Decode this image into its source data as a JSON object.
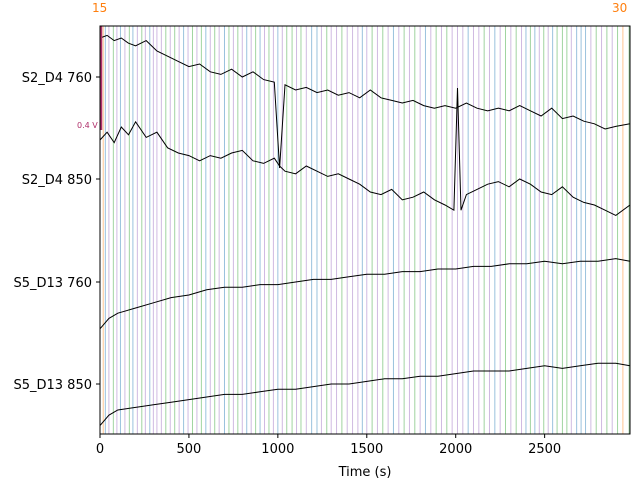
{
  "chart_data": {
    "type": "line",
    "title": "",
    "xlabel": "Time (s)",
    "ylabel": "",
    "xlim": [
      0,
      2980
    ],
    "xticks": [
      0,
      500,
      1000,
      1500,
      2000,
      2500
    ],
    "grid": false,
    "channels": [
      {
        "name": "S2_D4 760"
      },
      {
        "name": "S2_D4 850"
      },
      {
        "name": "S5_D13 760"
      },
      {
        "name": "S5_D13 850"
      }
    ],
    "scale_bar": {
      "label": "0.4 V",
      "color": "#b0306b"
    },
    "annotation_colors": [
      "#1f77b4",
      "#2ca02c",
      "#9467bd",
      "#ff7f0e"
    ],
    "annotation_top_text": "15",
    "annotation_end_text": "30",
    "series": [
      {
        "name": "S2_D4 760",
        "x": [
          0,
          40,
          80,
          120,
          160,
          200,
          260,
          320,
          380,
          440,
          500,
          560,
          620,
          680,
          740,
          800,
          860,
          920,
          980,
          1010,
          1040,
          1100,
          1160,
          1220,
          1280,
          1340,
          1400,
          1460,
          1520,
          1580,
          1640,
          1700,
          1760,
          1820,
          1880,
          1940,
          2000,
          2060,
          2120,
          2180,
          2240,
          2300,
          2360,
          2420,
          2480,
          2540,
          2600,
          2660,
          2720,
          2780,
          2840,
          2900,
          2980
        ],
        "y": [
          0.15,
          0.16,
          0.14,
          0.15,
          0.13,
          0.12,
          0.14,
          0.1,
          0.08,
          0.06,
          0.04,
          0.05,
          0.02,
          0.01,
          0.03,
          0.0,
          0.02,
          -0.01,
          -0.02,
          -0.35,
          -0.03,
          -0.05,
          -0.04,
          -0.06,
          -0.05,
          -0.07,
          -0.06,
          -0.08,
          -0.05,
          -0.08,
          -0.09,
          -0.1,
          -0.09,
          -0.11,
          -0.12,
          -0.11,
          -0.12,
          -0.1,
          -0.12,
          -0.13,
          -0.12,
          -0.13,
          -0.11,
          -0.13,
          -0.15,
          -0.12,
          -0.16,
          -0.15,
          -0.17,
          -0.18,
          -0.2,
          -0.19,
          -0.18
        ]
      },
      {
        "name": "S2_D4 850",
        "x": [
          0,
          40,
          80,
          120,
          160,
          200,
          260,
          320,
          380,
          440,
          500,
          560,
          620,
          680,
          740,
          800,
          860,
          920,
          980,
          1010,
          1040,
          1100,
          1160,
          1220,
          1280,
          1340,
          1400,
          1460,
          1520,
          1580,
          1640,
          1700,
          1760,
          1820,
          1880,
          1940,
          1990,
          2010,
          2030,
          2060,
          2120,
          2180,
          2240,
          2300,
          2360,
          2420,
          2480,
          2540,
          2600,
          2660,
          2720,
          2780,
          2840,
          2900,
          2980
        ],
        "y": [
          0.15,
          0.18,
          0.14,
          0.2,
          0.17,
          0.22,
          0.16,
          0.18,
          0.12,
          0.1,
          0.09,
          0.07,
          0.09,
          0.08,
          0.1,
          0.11,
          0.07,
          0.06,
          0.08,
          0.05,
          0.03,
          0.02,
          0.05,
          0.03,
          0.01,
          0.02,
          0.0,
          -0.02,
          -0.05,
          -0.06,
          -0.04,
          -0.08,
          -0.07,
          -0.05,
          -0.08,
          -0.1,
          -0.12,
          0.35,
          -0.12,
          -0.06,
          -0.04,
          -0.02,
          -0.01,
          -0.03,
          0.0,
          -0.02,
          -0.05,
          -0.06,
          -0.03,
          -0.07,
          -0.09,
          -0.1,
          -0.12,
          -0.14,
          -0.1
        ]
      },
      {
        "name": "S5_D13 760",
        "x": [
          0,
          50,
          100,
          200,
          300,
          400,
          500,
          600,
          700,
          800,
          900,
          1000,
          1100,
          1200,
          1300,
          1400,
          1500,
          1600,
          1700,
          1800,
          1900,
          2000,
          2100,
          2200,
          2300,
          2400,
          2500,
          2600,
          2700,
          2800,
          2900,
          2980
        ],
        "y": [
          -0.18,
          -0.14,
          -0.12,
          -0.1,
          -0.08,
          -0.06,
          -0.05,
          -0.03,
          -0.02,
          -0.02,
          -0.01,
          -0.01,
          0.0,
          0.01,
          0.01,
          0.02,
          0.03,
          0.03,
          0.04,
          0.04,
          0.05,
          0.05,
          0.06,
          0.06,
          0.07,
          0.07,
          0.08,
          0.07,
          0.08,
          0.08,
          0.09,
          0.08
        ]
      },
      {
        "name": "S5_D13 850",
        "x": [
          0,
          50,
          100,
          200,
          300,
          400,
          500,
          600,
          700,
          800,
          900,
          1000,
          1100,
          1200,
          1300,
          1400,
          1500,
          1600,
          1700,
          1800,
          1900,
          2000,
          2100,
          2200,
          2300,
          2400,
          2500,
          2600,
          2700,
          2800,
          2900,
          2980
        ],
        "y": [
          -0.16,
          -0.12,
          -0.1,
          -0.09,
          -0.08,
          -0.07,
          -0.06,
          -0.05,
          -0.04,
          -0.04,
          -0.03,
          -0.02,
          -0.02,
          -0.01,
          0.0,
          0.0,
          0.01,
          0.02,
          0.02,
          0.03,
          0.03,
          0.04,
          0.05,
          0.05,
          0.05,
          0.06,
          0.07,
          0.06,
          0.07,
          0.08,
          0.08,
          0.07
        ]
      }
    ],
    "annotations": [
      {
        "t": 18,
        "c": 3
      },
      {
        "t": 30,
        "c": 0
      },
      {
        "t": 50,
        "c": 2
      },
      {
        "t": 75,
        "c": 1
      },
      {
        "t": 95,
        "c": 2
      },
      {
        "t": 115,
        "c": 0
      },
      {
        "t": 140,
        "c": 2
      },
      {
        "t": 165,
        "c": 1
      },
      {
        "t": 185,
        "c": 0
      },
      {
        "t": 210,
        "c": 2
      },
      {
        "t": 235,
        "c": 1
      },
      {
        "t": 255,
        "c": 2
      },
      {
        "t": 280,
        "c": 0
      },
      {
        "t": 300,
        "c": 2
      },
      {
        "t": 320,
        "c": 2
      },
      {
        "t": 345,
        "c": 2
      },
      {
        "t": 370,
        "c": 1
      },
      {
        "t": 395,
        "c": 2
      },
      {
        "t": 420,
        "c": 1
      },
      {
        "t": 445,
        "c": 2
      },
      {
        "t": 470,
        "c": 0
      },
      {
        "t": 495,
        "c": 2
      },
      {
        "t": 520,
        "c": 1
      },
      {
        "t": 545,
        "c": 2
      },
      {
        "t": 570,
        "c": 1
      },
      {
        "t": 595,
        "c": 0
      },
      {
        "t": 620,
        "c": 2
      },
      {
        "t": 645,
        "c": 1
      },
      {
        "t": 670,
        "c": 2
      },
      {
        "t": 700,
        "c": 0
      },
      {
        "t": 725,
        "c": 1
      },
      {
        "t": 750,
        "c": 2
      },
      {
        "t": 775,
        "c": 1
      },
      {
        "t": 800,
        "c": 2
      },
      {
        "t": 825,
        "c": 0
      },
      {
        "t": 850,
        "c": 2
      },
      {
        "t": 875,
        "c": 1
      },
      {
        "t": 900,
        "c": 0
      },
      {
        "t": 925,
        "c": 2
      },
      {
        "t": 950,
        "c": 1
      },
      {
        "t": 975,
        "c": 2
      },
      {
        "t": 1000,
        "c": 0
      },
      {
        "t": 1025,
        "c": 2
      },
      {
        "t": 1050,
        "c": 1
      },
      {
        "t": 1080,
        "c": 1
      },
      {
        "t": 1105,
        "c": 2
      },
      {
        "t": 1130,
        "c": 1
      },
      {
        "t": 1160,
        "c": 2
      },
      {
        "t": 1190,
        "c": 0
      },
      {
        "t": 1220,
        "c": 0
      },
      {
        "t": 1245,
        "c": 2
      },
      {
        "t": 1275,
        "c": 1
      },
      {
        "t": 1300,
        "c": 2
      },
      {
        "t": 1330,
        "c": 2
      },
      {
        "t": 1360,
        "c": 1
      },
      {
        "t": 1390,
        "c": 2
      },
      {
        "t": 1420,
        "c": 2
      },
      {
        "t": 1450,
        "c": 2
      },
      {
        "t": 1475,
        "c": 0
      },
      {
        "t": 1500,
        "c": 2
      },
      {
        "t": 1530,
        "c": 1
      },
      {
        "t": 1560,
        "c": 2
      },
      {
        "t": 1590,
        "c": 1
      },
      {
        "t": 1620,
        "c": 2
      },
      {
        "t": 1650,
        "c": 0
      },
      {
        "t": 1680,
        "c": 2
      },
      {
        "t": 1710,
        "c": 1
      },
      {
        "t": 1740,
        "c": 2
      },
      {
        "t": 1770,
        "c": 1
      },
      {
        "t": 1800,
        "c": 2
      },
      {
        "t": 1830,
        "c": 0
      },
      {
        "t": 1860,
        "c": 2
      },
      {
        "t": 1890,
        "c": 1
      },
      {
        "t": 1920,
        "c": 2
      },
      {
        "t": 1950,
        "c": 1
      },
      {
        "t": 1980,
        "c": 2
      },
      {
        "t": 2010,
        "c": 2
      },
      {
        "t": 2040,
        "c": 2
      },
      {
        "t": 2070,
        "c": 0
      },
      {
        "t": 2100,
        "c": 2
      },
      {
        "t": 2130,
        "c": 2
      },
      {
        "t": 2160,
        "c": 1
      },
      {
        "t": 2190,
        "c": 2
      },
      {
        "t": 2220,
        "c": 0
      },
      {
        "t": 2250,
        "c": 2
      },
      {
        "t": 2280,
        "c": 1
      },
      {
        "t": 2310,
        "c": 2
      },
      {
        "t": 2340,
        "c": 1
      },
      {
        "t": 2370,
        "c": 2
      },
      {
        "t": 2395,
        "c": 0
      },
      {
        "t": 2420,
        "c": 1
      },
      {
        "t": 2445,
        "c": 0
      },
      {
        "t": 2470,
        "c": 2
      },
      {
        "t": 2495,
        "c": 1
      },
      {
        "t": 2520,
        "c": 2
      },
      {
        "t": 2545,
        "c": 0
      },
      {
        "t": 2570,
        "c": 1
      },
      {
        "t": 2600,
        "c": 1
      },
      {
        "t": 2625,
        "c": 1
      },
      {
        "t": 2650,
        "c": 2
      },
      {
        "t": 2680,
        "c": 0
      },
      {
        "t": 2705,
        "c": 0
      },
      {
        "t": 2730,
        "c": 0
      },
      {
        "t": 2760,
        "c": 2
      },
      {
        "t": 2790,
        "c": 1
      },
      {
        "t": 2820,
        "c": 2
      },
      {
        "t": 2850,
        "c": 1
      },
      {
        "t": 2880,
        "c": 2
      },
      {
        "t": 2910,
        "c": 1
      },
      {
        "t": 2940,
        "c": 3
      },
      {
        "t": 2975,
        "c": 1
      }
    ]
  }
}
